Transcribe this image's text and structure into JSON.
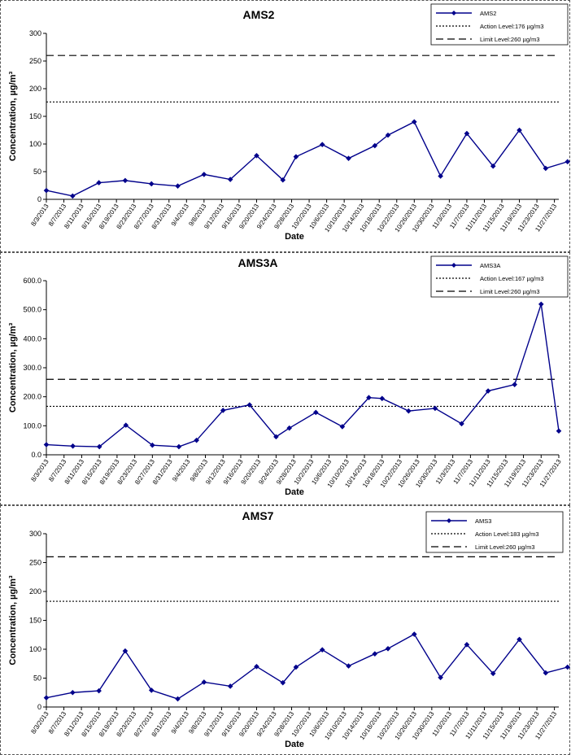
{
  "chart_data": [
    {
      "type": "line",
      "title": "AMS2",
      "xlabel": "Date",
      "ylabel": "Concentration, µg/m³",
      "ylim": [
        0,
        300
      ],
      "yticks": [
        "0",
        "50",
        "100",
        "150",
        "200",
        "250",
        "300"
      ],
      "categories": [
        "8/3/2013",
        "8/7/2013",
        "8/11/2013",
        "8/15/2013",
        "8/19/2013",
        "8/23/2013",
        "8/27/2013",
        "8/31/2013",
        "9/4/2013",
        "9/8/2013",
        "9/12/2013",
        "9/16/2013",
        "9/20/2013",
        "9/24/2013",
        "9/28/2013",
        "10/2/2013",
        "10/6/2013",
        "10/10/2013",
        "10/14/2013",
        "10/18/2013",
        "10/22/2013",
        "10/26/2013",
        "10/30/2013",
        "11/3/2013",
        "11/7/2013",
        "11/11/2013",
        "11/15/2013",
        "11/19/2013",
        "11/23/2013",
        "11/27/2013"
      ],
      "x_range_days": [
        0,
        117
      ],
      "series": [
        {
          "name": "AMS2",
          "color": "#00008B",
          "x": [
            "8/3/2013",
            "8/9/2013",
            "8/15/2013",
            "8/21/2013",
            "8/27/2013",
            "9/2/2013",
            "9/8/2013",
            "9/14/2013",
            "9/20/2013",
            "9/26/2013",
            "9/29/2013",
            "10/5/2013",
            "10/11/2013",
            "10/17/2013",
            "10/20/2013",
            "10/26/2013",
            "11/1/2013",
            "11/7/2013",
            "11/13/2013",
            "11/19/2013",
            "11/25/2013",
            "11/30/2013"
          ],
          "values": [
            16,
            6,
            30,
            34,
            28,
            24,
            45,
            36,
            79,
            35,
            77,
            99,
            74,
            97,
            116,
            140,
            42,
            119,
            60,
            125,
            56,
            68
          ]
        }
      ],
      "reference_lines": [
        {
          "name": "Action Level:176 µg/m3",
          "value": 176,
          "style": "dotted"
        },
        {
          "name": "Limit Level:260 µg/m3",
          "value": 260,
          "style": "dashed"
        }
      ],
      "legend_position": "top-right"
    },
    {
      "type": "line",
      "title": "AMS3A",
      "xlabel": "Date",
      "ylabel": "Concentration, µg/m³",
      "ylim": [
        0,
        600
      ],
      "yticks": [
        "0.0",
        "100.0",
        "200.0",
        "300.0",
        "400.0",
        "500.0",
        "600.0"
      ],
      "categories": [
        "8/3/2013",
        "8/7/2013",
        "8/11/2013",
        "8/15/2013",
        "8/19/2013",
        "8/23/2013",
        "8/27/2013",
        "8/31/2013",
        "9/4/2013",
        "9/8/2013",
        "9/12/2013",
        "9/16/2013",
        "9/20/2013",
        "9/24/2013",
        "9/28/2013",
        "10/2/2013",
        "10/6/2013",
        "10/10/2013",
        "10/14/2013",
        "10/18/2013",
        "10/22/2013",
        "10/26/2013",
        "10/30/2013",
        "11/3/2013",
        "11/7/2013",
        "11/11/2013",
        "11/15/2013",
        "11/19/2013",
        "11/23/2013",
        "11/27/2013"
      ],
      "x_range_days": [
        0,
        116
      ],
      "series": [
        {
          "name": "AMS3A",
          "color": "#00008B",
          "x": [
            "8/3/2013",
            "8/9/2013",
            "8/15/2013",
            "8/21/2013",
            "8/27/2013",
            "9/2/2013",
            "9/6/2013",
            "9/12/2013",
            "9/18/2013",
            "9/24/2013",
            "9/27/2013",
            "10/3/2013",
            "10/9/2013",
            "10/15/2013",
            "10/18/2013",
            "10/24/2013",
            "10/30/2013",
            "11/5/2013",
            "11/11/2013",
            "11/17/2013",
            "11/23/2013",
            "11/27/2013"
          ],
          "values": [
            35,
            30,
            28,
            102,
            33,
            28,
            50,
            153,
            172,
            62,
            92,
            146,
            97,
            197,
            194,
            151,
            160,
            107,
            220,
            242,
            519,
            82
          ]
        }
      ],
      "reference_lines": [
        {
          "name": "Action Level:167 µg/m3",
          "value": 167,
          "style": "dotted"
        },
        {
          "name": "Limit Level:260 µg/m3",
          "value": 260,
          "style": "dashed"
        }
      ],
      "legend_position": "top-right"
    },
    {
      "type": "line",
      "title": "AMS7",
      "xlabel": "Date",
      "ylabel": "Concentration, µg/m³",
      "ylim": [
        0,
        300
      ],
      "yticks": [
        "0",
        "50",
        "100",
        "150",
        "200",
        "250",
        "300"
      ],
      "categories": [
        "8/3/2013",
        "8/7/2013",
        "8/11/2013",
        "8/15/2013",
        "8/19/2013",
        "8/23/2013",
        "8/27/2013",
        "8/31/2013",
        "9/4/2013",
        "9/8/2013",
        "9/12/2013",
        "9/16/2013",
        "9/20/2013",
        "9/24/2013",
        "9/28/2013",
        "10/2/2013",
        "10/6/2013",
        "10/10/2013",
        "10/14/2013",
        "10/18/2013",
        "10/22/2013",
        "10/26/2013",
        "10/30/2013",
        "11/3/2013",
        "11/7/2013",
        "11/11/2013",
        "11/15/2013",
        "11/19/2013",
        "11/23/2013",
        "11/27/2013"
      ],
      "x_range_days": [
        0,
        117
      ],
      "series": [
        {
          "name": "AMS3",
          "color": "#00008B",
          "x": [
            "8/3/2013",
            "8/9/2013",
            "8/15/2013",
            "8/21/2013",
            "8/27/2013",
            "9/2/2013",
            "9/8/2013",
            "9/14/2013",
            "9/20/2013",
            "9/26/2013",
            "9/29/2013",
            "10/5/2013",
            "10/11/2013",
            "10/17/2013",
            "10/20/2013",
            "10/26/2013",
            "11/1/2013",
            "11/7/2013",
            "11/13/2013",
            "11/19/2013",
            "11/25/2013",
            "11/30/2013"
          ],
          "values": [
            16,
            25,
            28,
            97,
            29,
            14,
            43,
            36,
            70,
            42,
            69,
            99,
            71,
            92,
            101,
            126,
            51,
            108,
            58,
            117,
            59,
            69
          ]
        }
      ],
      "reference_lines": [
        {
          "name": "Action Level:183 µg/m3",
          "value": 183,
          "style": "dotted"
        },
        {
          "name": "Limit Level:260 µg/m3",
          "value": 260,
          "style": "dashed"
        }
      ],
      "legend_position": "top-right"
    }
  ]
}
